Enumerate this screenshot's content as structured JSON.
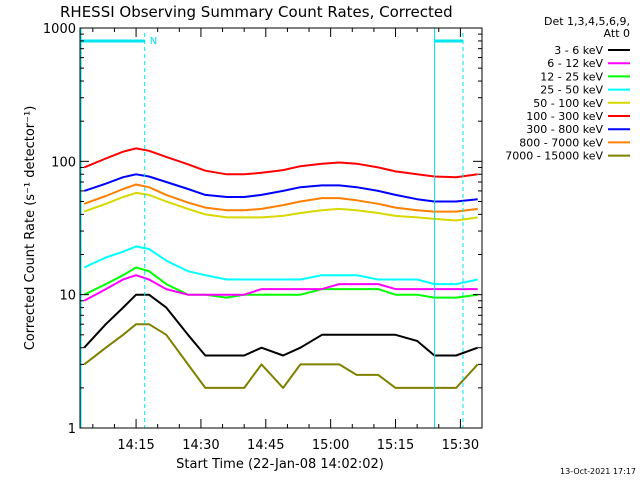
{
  "chart_data": {
    "type": "line",
    "title": "RHESSI Observing Summary Count Rates, Corrected",
    "xlabel": "Start Time (22-Jan-08 14:02:02)",
    "ylabel": "Corrected Count Rate (s⁻¹ detector⁻¹)",
    "yscale": "log",
    "ylim": [
      1,
      1000
    ],
    "xlim": [
      "14:02:02",
      "15:35:00"
    ],
    "x_ticks": [
      "14:15",
      "14:30",
      "14:45",
      "15:00",
      "15:15",
      "15:30"
    ],
    "y_ticks": [
      "1",
      "10",
      "100",
      "1000"
    ],
    "legend_header": [
      "Det 1,3,4,5,6,9,",
      "Att 0"
    ],
    "legend_placement": "right",
    "footer_date": "13-Oct-2021 17:17",
    "flag_marker": "N",
    "grid": false,
    "colors": {
      "background": "#ffffff",
      "axes": "#000000",
      "flag": "#00e5ee"
    },
    "time_samples": [
      "14:03",
      "14:08",
      "14:12",
      "14:15",
      "14:18",
      "14:22",
      "14:27",
      "14:31",
      "14:36",
      "14:40",
      "14:44",
      "14:49",
      "14:53",
      "14:58",
      "15:02",
      "15:06",
      "15:11",
      "15:15",
      "15:20",
      "15:24",
      "15:29",
      "15:34"
    ],
    "series": [
      {
        "name": "3 - 6 keV",
        "color": "#000000",
        "values": [
          4,
          6,
          8,
          10,
          10,
          8,
          5,
          3.5,
          3.5,
          3.5,
          4,
          3.5,
          4,
          5,
          5,
          5,
          5,
          5,
          4.5,
          3.5,
          3.5,
          4
        ]
      },
      {
        "name": "6 - 12 keV",
        "color": "#ff00ff",
        "values": [
          9,
          11,
          13,
          14,
          13,
          11,
          10,
          10,
          10,
          10,
          11,
          11,
          11,
          11,
          12,
          12,
          12,
          11,
          11,
          11,
          11,
          11
        ]
      },
      {
        "name": "12 - 25 keV",
        "color": "#00ff00",
        "values": [
          10,
          12,
          14,
          16,
          15,
          12,
          10,
          10,
          9.5,
          10,
          10,
          10,
          10,
          11,
          11,
          11,
          11,
          10,
          10,
          9.5,
          9.5,
          10
        ]
      },
      {
        "name": "25 - 50 keV",
        "color": "#00ffff",
        "values": [
          16,
          19,
          21,
          23,
          22,
          18,
          15,
          14,
          13,
          13,
          13,
          13,
          13,
          14,
          14,
          14,
          13,
          13,
          13,
          12,
          12,
          13
        ]
      },
      {
        "name": "50 - 100 keV",
        "color": "#d8d800",
        "values": [
          42,
          48,
          54,
          58,
          56,
          50,
          44,
          40,
          38,
          38,
          38,
          39,
          41,
          43,
          44,
          43,
          41,
          39,
          38,
          37,
          36,
          38
        ]
      },
      {
        "name": "100 - 300 keV",
        "color": "#ff0000",
        "values": [
          90,
          105,
          118,
          125,
          120,
          108,
          95,
          85,
          80,
          80,
          82,
          86,
          92,
          96,
          98,
          96,
          90,
          84,
          80,
          77,
          76,
          80
        ]
      },
      {
        "name": "300 - 800 keV",
        "color": "#0000ff",
        "values": [
          60,
          68,
          76,
          80,
          77,
          70,
          62,
          56,
          54,
          54,
          56,
          60,
          64,
          66,
          66,
          64,
          60,
          56,
          52,
          50,
          50,
          52
        ]
      },
      {
        "name": "800 - 7000 keV",
        "color": "#ff8000",
        "values": [
          48,
          55,
          62,
          67,
          64,
          56,
          49,
          45,
          43,
          43,
          44,
          47,
          50,
          53,
          53,
          51,
          48,
          45,
          43,
          42,
          42,
          44
        ]
      },
      {
        "name": "7000 - 15000 keV",
        "color": "#808000",
        "values": [
          3,
          4,
          5,
          6,
          6,
          5,
          3,
          2,
          2,
          2,
          3,
          2,
          3,
          3,
          3,
          2.5,
          2.5,
          2,
          2,
          2,
          2,
          3
        ]
      }
    ]
  }
}
